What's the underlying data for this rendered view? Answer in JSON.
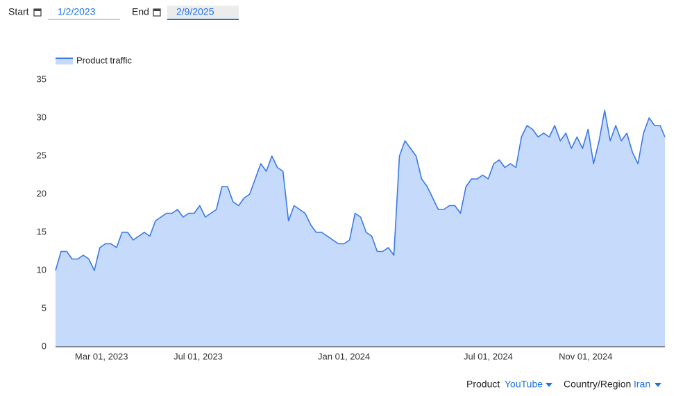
{
  "controls": {
    "start_label": "Start",
    "start_value": "1/2/2023",
    "end_label": "End",
    "end_value": "2/9/2025"
  },
  "filters": {
    "product_label": "Product",
    "product_value": "YouTube",
    "region_label": "Country/Region",
    "region_value": "Iran"
  },
  "chart_data": {
    "type": "area",
    "x": [
      "2023-01-02",
      "2023-01-09",
      "2023-01-16",
      "2023-01-23",
      "2023-01-30",
      "2023-02-06",
      "2023-02-13",
      "2023-02-20",
      "2023-02-27",
      "2023-03-06",
      "2023-03-13",
      "2023-03-20",
      "2023-03-27",
      "2023-04-03",
      "2023-04-10",
      "2023-04-17",
      "2023-04-24",
      "2023-05-01",
      "2023-05-08",
      "2023-05-15",
      "2023-05-22",
      "2023-05-29",
      "2023-06-05",
      "2023-06-12",
      "2023-06-19",
      "2023-06-26",
      "2023-07-03",
      "2023-07-10",
      "2023-07-17",
      "2023-07-24",
      "2023-07-31",
      "2023-08-07",
      "2023-08-14",
      "2023-08-21",
      "2023-08-28",
      "2023-09-04",
      "2023-09-11",
      "2023-09-18",
      "2023-09-25",
      "2023-10-02",
      "2023-10-09",
      "2023-10-16",
      "2023-10-23",
      "2023-10-30",
      "2023-11-06",
      "2023-11-13",
      "2023-11-20",
      "2023-11-27",
      "2023-12-04",
      "2023-12-11",
      "2023-12-18",
      "2023-12-25",
      "2024-01-01",
      "2024-01-08",
      "2024-01-15",
      "2024-01-22",
      "2024-01-29",
      "2024-02-05",
      "2024-02-12",
      "2024-02-19",
      "2024-02-26",
      "2024-03-04",
      "2024-03-11",
      "2024-03-18",
      "2024-03-25",
      "2024-04-01",
      "2024-04-08",
      "2024-04-15",
      "2024-04-22",
      "2024-04-29",
      "2024-05-06",
      "2024-05-13",
      "2024-05-20",
      "2024-05-27",
      "2024-06-03",
      "2024-06-10",
      "2024-06-17",
      "2024-06-24",
      "2024-07-01",
      "2024-07-08",
      "2024-07-15",
      "2024-07-22",
      "2024-07-29",
      "2024-08-05",
      "2024-08-12",
      "2024-08-19",
      "2024-08-26",
      "2024-09-02",
      "2024-09-09",
      "2024-09-16",
      "2024-09-23",
      "2024-09-30",
      "2024-10-07",
      "2024-10-14",
      "2024-10-21",
      "2024-10-28",
      "2024-11-04",
      "2024-11-11",
      "2024-11-18",
      "2024-11-25",
      "2024-12-02",
      "2024-12-09",
      "2024-12-16",
      "2024-12-23",
      "2024-12-30",
      "2025-01-06",
      "2025-01-13",
      "2025-01-20",
      "2025-01-27",
      "2025-02-03",
      "2025-02-09"
    ],
    "series": [
      {
        "name": "Product traffic",
        "color": "#3b78e7",
        "fill": "#c6dafc",
        "values": [
          10,
          12.5,
          12.5,
          11.5,
          11.5,
          12,
          11.5,
          10,
          13,
          13.5,
          13.5,
          13,
          15,
          15,
          14,
          14.5,
          15,
          14.5,
          16.5,
          17,
          17.5,
          17.5,
          18,
          17,
          17.5,
          17.5,
          18.5,
          17,
          17.5,
          18,
          21,
          21,
          19,
          18.5,
          19.5,
          20,
          22,
          24,
          23,
          25,
          23.5,
          23,
          16.5,
          18.5,
          18,
          17.5,
          16,
          15,
          15,
          14.5,
          14,
          13.5,
          13.5,
          14,
          17.5,
          17,
          15,
          14.5,
          12.5,
          12.5,
          13,
          12,
          25,
          27,
          26,
          25,
          22,
          21,
          19.5,
          18,
          18,
          18.5,
          18.5,
          17.5,
          21,
          22,
          22,
          22.5,
          22,
          24,
          24.5,
          23.5,
          24,
          23.5,
          27.5,
          29,
          28.5,
          27.5,
          28,
          27.5,
          29,
          27,
          28,
          26,
          27.5,
          26,
          28.5,
          24,
          27,
          31,
          27,
          29,
          27,
          28,
          25.5,
          24,
          28,
          30,
          29,
          29,
          27.5
        ]
      }
    ],
    "xlim": [
      "2023-01-02",
      "2025-02-09"
    ],
    "xticks": [
      {
        "value": "2023-03-01",
        "label": "Mar 01, 2023"
      },
      {
        "value": "2023-07-01",
        "label": "Jul 01, 2023"
      },
      {
        "value": "2024-01-01",
        "label": "Jan 01, 2024"
      },
      {
        "value": "2024-07-01",
        "label": "Jul 01, 2024"
      },
      {
        "value": "2024-11-01",
        "label": "Nov 01, 2024"
      }
    ],
    "ylim": [
      0,
      35
    ],
    "yticks": [
      0,
      5,
      10,
      15,
      20,
      25,
      30,
      35
    ],
    "grid": false,
    "legend": "top-left"
  }
}
